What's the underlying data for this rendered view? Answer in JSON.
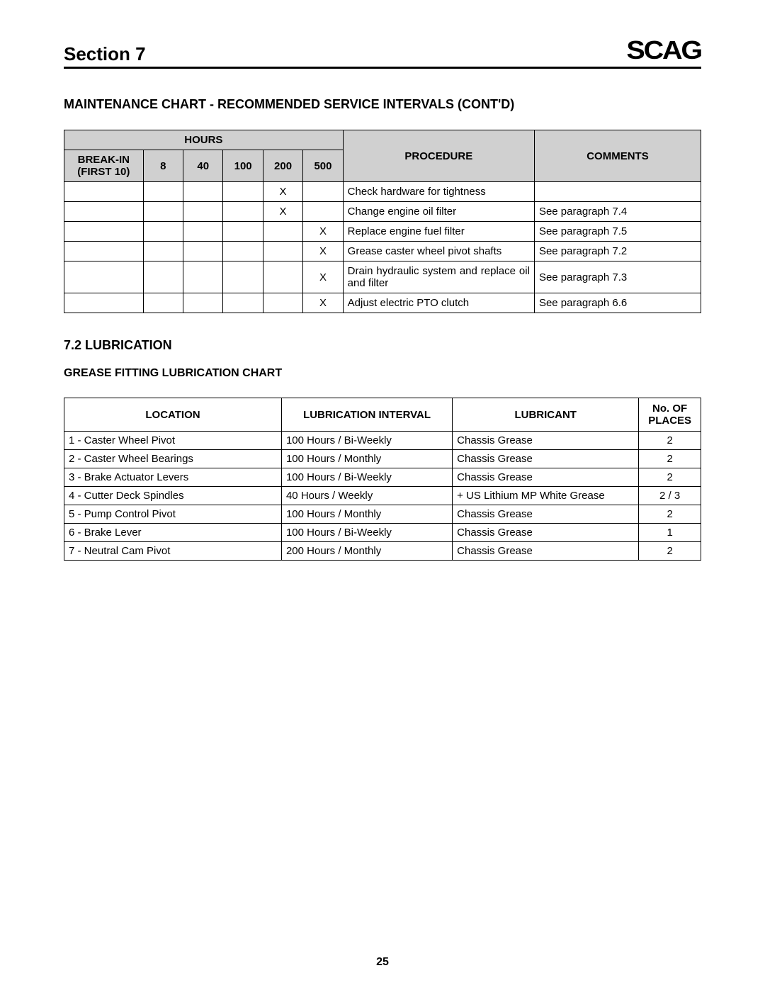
{
  "header": {
    "section_label": "Section 7",
    "logo_text": "SCAG"
  },
  "maintenance_chart": {
    "title": "MAINTENANCE CHART - RECOMMENDED SERVICE INTERVALS (CONT'D)",
    "hours_header": "HOURS",
    "breakin_header": "BREAK-IN (FIRST 10)",
    "hour_columns": [
      "8",
      "40",
      "100",
      "200",
      "500"
    ],
    "procedure_header": "PROCEDURE",
    "comments_header": "COMMENTS",
    "rows": [
      {
        "breakin": "",
        "h8": "",
        "h40": "",
        "h100": "",
        "h200": "X",
        "h500": "",
        "procedure": "Check hardware for tightness",
        "comments": ""
      },
      {
        "breakin": "",
        "h8": "",
        "h40": "",
        "h100": "",
        "h200": "X",
        "h500": "",
        "procedure": "Change engine oil filter",
        "comments": "See paragraph 7.4"
      },
      {
        "breakin": "",
        "h8": "",
        "h40": "",
        "h100": "",
        "h200": "",
        "h500": "X",
        "procedure": "Replace engine fuel filter",
        "comments": "See paragraph 7.5"
      },
      {
        "breakin": "",
        "h8": "",
        "h40": "",
        "h100": "",
        "h200": "",
        "h500": "X",
        "procedure": "Grease caster wheel pivot shafts",
        "comments": "See paragraph 7.2"
      },
      {
        "breakin": "",
        "h8": "",
        "h40": "",
        "h100": "",
        "h200": "",
        "h500": "X",
        "procedure": "Drain hydraulic system and replace oil and filter",
        "comments": "See paragraph 7.3"
      },
      {
        "breakin": "",
        "h8": "",
        "h40": "",
        "h100": "",
        "h200": "",
        "h500": "X",
        "procedure": "Adjust electric PTO clutch",
        "comments": "See paragraph 6.6"
      }
    ]
  },
  "lubrication_section": {
    "title": "7.2 LUBRICATION",
    "subtitle": "GREASE FITTING LUBRICATION CHART",
    "columns": {
      "location": "LOCATION",
      "interval": "LUBRICATION INTERVAL",
      "lubricant": "LUBRICANT",
      "places": "No. OF PLACES"
    },
    "rows": [
      {
        "location": "1 - Caster Wheel Pivot",
        "interval": "100 Hours / Bi-Weekly",
        "lubricant": "Chassis Grease",
        "places": "2"
      },
      {
        "location": "2 - Caster Wheel Bearings",
        "interval": "100 Hours / Monthly",
        "lubricant": "Chassis Grease",
        "places": "2"
      },
      {
        "location": "3 - Brake Actuator Levers",
        "interval": "100 Hours / Bi-Weekly",
        "lubricant": "Chassis Grease",
        "places": "2"
      },
      {
        "location": "4 - Cutter Deck Spindles",
        "interval": "40 Hours / Weekly",
        "lubricant": "+ US Lithium MP White Grease",
        "places": "2 / 3"
      },
      {
        "location": "5 - Pump Control Pivot",
        "interval": "100 Hours / Monthly",
        "lubricant": "Chassis Grease",
        "places": "2"
      },
      {
        "location": "6 - Brake Lever",
        "interval": "100 Hours / Bi-Weekly",
        "lubricant": "Chassis Grease",
        "places": "1"
      },
      {
        "location": "7 - Neutral Cam Pivot",
        "interval": "200 Hours / Monthly",
        "lubricant": "Chassis Grease",
        "places": "2"
      }
    ]
  },
  "page_number": "25"
}
